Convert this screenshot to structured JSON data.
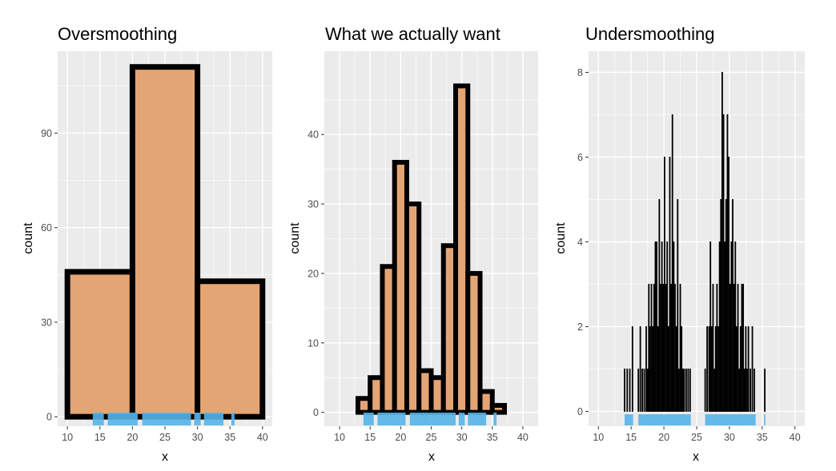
{
  "colors": {
    "panel_background": "#ebebeb",
    "gridline_major": "#ffffff",
    "bar_fill": "#e4a574",
    "bar_outline": "#000000",
    "rug": "#56b4e9"
  },
  "chart_data": [
    {
      "type": "bar",
      "title": "Oversmoothing",
      "xlabel": "x",
      "ylabel": "count",
      "xlim": [
        8.5,
        41.5
      ],
      "ylim": [
        -3,
        116
      ],
      "xticks": [
        10,
        15,
        20,
        25,
        30,
        35,
        40
      ],
      "yticks": [
        0,
        30,
        60,
        90
      ],
      "grid": true,
      "bins": [
        {
          "x0": 10,
          "x1": 20,
          "count": 46
        },
        {
          "x0": 20,
          "x1": 30,
          "count": 111
        },
        {
          "x0": 30,
          "x1": 40,
          "count": 43
        }
      ],
      "rug": [
        [
          13.9,
          15.6
        ],
        [
          16.2,
          20.8
        ],
        [
          21.5,
          29.0
        ],
        [
          29.5,
          30.5
        ],
        [
          31.0,
          34.0
        ],
        [
          35.2,
          35.7
        ]
      ]
    },
    {
      "type": "bar",
      "title": "What we actually want",
      "xlabel": "x",
      "ylabel": "count",
      "xlim": [
        7.5,
        42.5
      ],
      "ylim": [
        -2,
        52
      ],
      "xticks": [
        10,
        15,
        20,
        25,
        30,
        35,
        40
      ],
      "yticks": [
        0,
        10,
        20,
        30,
        40
      ],
      "grid": true,
      "bins": [
        {
          "x0": 13,
          "x1": 15,
          "count": 2
        },
        {
          "x0": 15,
          "x1": 17,
          "count": 5
        },
        {
          "x0": 17,
          "x1": 19,
          "count": 21
        },
        {
          "x0": 19,
          "x1": 21,
          "count": 36
        },
        {
          "x0": 21,
          "x1": 23,
          "count": 30
        },
        {
          "x0": 23,
          "x1": 25,
          "count": 6
        },
        {
          "x0": 25,
          "x1": 27,
          "count": 5
        },
        {
          "x0": 27,
          "x1": 29,
          "count": 24
        },
        {
          "x0": 29,
          "x1": 31,
          "count": 47
        },
        {
          "x0": 31,
          "x1": 33,
          "count": 20
        },
        {
          "x0": 33,
          "x1": 35,
          "count": 3
        },
        {
          "x0": 35,
          "x1": 37,
          "count": 1
        }
      ],
      "rug": [
        [
          13.9,
          15.6
        ],
        [
          16.2,
          20.8
        ],
        [
          21.5,
          29.0
        ],
        [
          29.5,
          30.5
        ],
        [
          31.0,
          34.0
        ],
        [
          35.2,
          35.7
        ]
      ]
    },
    {
      "type": "bar",
      "title": "Undersmoothing",
      "xlabel": "x",
      "ylabel": "count",
      "xlim": [
        8.5,
        41.5
      ],
      "ylim": [
        -0.35,
        8.5
      ],
      "xticks": [
        10,
        15,
        20,
        25,
        30,
        35,
        40
      ],
      "yticks": [
        0,
        2,
        4,
        6,
        8
      ],
      "grid": true,
      "binwidth": 0.1,
      "bins": [
        {
          "x": 14.0,
          "count": 1
        },
        {
          "x": 14.4,
          "count": 1
        },
        {
          "x": 14.8,
          "count": 1
        },
        {
          "x": 15.2,
          "count": 2
        },
        {
          "x": 16.1,
          "count": 1
        },
        {
          "x": 16.4,
          "count": 2
        },
        {
          "x": 16.7,
          "count": 1
        },
        {
          "x": 17.0,
          "count": 1
        },
        {
          "x": 17.3,
          "count": 2
        },
        {
          "x": 17.5,
          "count": 1
        },
        {
          "x": 17.7,
          "count": 3
        },
        {
          "x": 17.9,
          "count": 2
        },
        {
          "x": 18.1,
          "count": 3
        },
        {
          "x": 18.3,
          "count": 2
        },
        {
          "x": 18.5,
          "count": 3
        },
        {
          "x": 18.7,
          "count": 4
        },
        {
          "x": 18.9,
          "count": 4
        },
        {
          "x": 19.1,
          "count": 2
        },
        {
          "x": 19.3,
          "count": 5
        },
        {
          "x": 19.5,
          "count": 3
        },
        {
          "x": 19.7,
          "count": 4
        },
        {
          "x": 19.9,
          "count": 3
        },
        {
          "x": 20.1,
          "count": 6
        },
        {
          "x": 20.3,
          "count": 3
        },
        {
          "x": 20.5,
          "count": 4
        },
        {
          "x": 20.7,
          "count": 2
        },
        {
          "x": 20.9,
          "count": 6
        },
        {
          "x": 21.1,
          "count": 3
        },
        {
          "x": 21.3,
          "count": 7
        },
        {
          "x": 21.5,
          "count": 4
        },
        {
          "x": 21.7,
          "count": 3
        },
        {
          "x": 21.9,
          "count": 2
        },
        {
          "x": 22.1,
          "count": 5
        },
        {
          "x": 22.3,
          "count": 1
        },
        {
          "x": 22.5,
          "count": 3
        },
        {
          "x": 22.7,
          "count": 2
        },
        {
          "x": 22.9,
          "count": 1
        },
        {
          "x": 23.1,
          "count": 1
        },
        {
          "x": 23.4,
          "count": 1
        },
        {
          "x": 23.7,
          "count": 1
        },
        {
          "x": 24.0,
          "count": 1
        },
        {
          "x": 26.3,
          "count": 1
        },
        {
          "x": 26.6,
          "count": 2
        },
        {
          "x": 26.9,
          "count": 2
        },
        {
          "x": 27.1,
          "count": 4
        },
        {
          "x": 27.3,
          "count": 2
        },
        {
          "x": 27.5,
          "count": 3
        },
        {
          "x": 27.7,
          "count": 1
        },
        {
          "x": 27.9,
          "count": 2
        },
        {
          "x": 28.1,
          "count": 3
        },
        {
          "x": 28.3,
          "count": 2
        },
        {
          "x": 28.5,
          "count": 4
        },
        {
          "x": 28.7,
          "count": 5
        },
        {
          "x": 28.9,
          "count": 8
        },
        {
          "x": 29.1,
          "count": 7
        },
        {
          "x": 29.3,
          "count": 4
        },
        {
          "x": 29.5,
          "count": 5
        },
        {
          "x": 29.7,
          "count": 7
        },
        {
          "x": 29.9,
          "count": 6
        },
        {
          "x": 30.1,
          "count": 3
        },
        {
          "x": 30.3,
          "count": 4
        },
        {
          "x": 30.5,
          "count": 5
        },
        {
          "x": 30.7,
          "count": 3
        },
        {
          "x": 30.9,
          "count": 4
        },
        {
          "x": 31.1,
          "count": 2
        },
        {
          "x": 31.3,
          "count": 3
        },
        {
          "x": 31.5,
          "count": 1
        },
        {
          "x": 31.7,
          "count": 2
        },
        {
          "x": 31.9,
          "count": 3
        },
        {
          "x": 32.1,
          "count": 3
        },
        {
          "x": 32.3,
          "count": 1
        },
        {
          "x": 32.5,
          "count": 2
        },
        {
          "x": 32.7,
          "count": 1
        },
        {
          "x": 32.9,
          "count": 2
        },
        {
          "x": 33.2,
          "count": 1
        },
        {
          "x": 33.5,
          "count": 2
        },
        {
          "x": 33.8,
          "count": 1
        },
        {
          "x": 35.4,
          "count": 1
        }
      ],
      "rug": [
        [
          14.0,
          15.3
        ],
        [
          16.1,
          24.1
        ],
        [
          26.3,
          34.0
        ],
        [
          35.3,
          35.5
        ]
      ]
    }
  ]
}
